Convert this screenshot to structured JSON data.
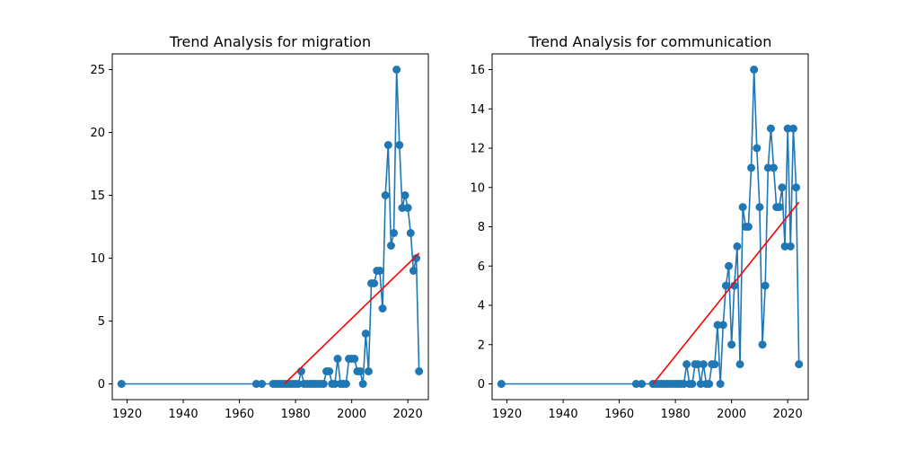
{
  "chart_data": [
    {
      "type": "line",
      "title": "Trend Analysis for migration",
      "xlabel": "",
      "ylabel": "",
      "xlim": [
        1914.7,
        2027.3
      ],
      "ylim": [
        -1.25,
        26.25
      ],
      "xticks": [
        1920,
        1940,
        1960,
        1980,
        2000,
        2020
      ],
      "yticks": [
        0,
        5,
        10,
        15,
        20,
        25
      ],
      "grid": false,
      "legend": "none",
      "series": [
        {
          "color": "#1f77b4",
          "marker": "circle",
          "points": [
            [
              1918,
              0
            ],
            [
              1966,
              0
            ],
            [
              1968,
              0
            ],
            [
              1972,
              0
            ],
            [
              1973,
              0
            ],
            [
              1974,
              0
            ],
            [
              1975,
              0
            ],
            [
              1976,
              0
            ],
            [
              1977,
              0
            ],
            [
              1978,
              0
            ],
            [
              1979,
              0
            ],
            [
              1980,
              0
            ],
            [
              1981,
              0
            ],
            [
              1982,
              1
            ],
            [
              1983,
              0
            ],
            [
              1984,
              0
            ],
            [
              1985,
              0
            ],
            [
              1986,
              0
            ],
            [
              1987,
              0
            ],
            [
              1988,
              0
            ],
            [
              1989,
              0
            ],
            [
              1990,
              0
            ],
            [
              1991,
              1
            ],
            [
              1992,
              1
            ],
            [
              1993,
              0
            ],
            [
              1994,
              0
            ],
            [
              1995,
              2
            ],
            [
              1996,
              0
            ],
            [
              1997,
              0
            ],
            [
              1998,
              0
            ],
            [
              1999,
              2
            ],
            [
              2000,
              2
            ],
            [
              2001,
              2
            ],
            [
              2002,
              1
            ],
            [
              2003,
              1
            ],
            [
              2004,
              0
            ],
            [
              2005,
              4
            ],
            [
              2006,
              1
            ],
            [
              2007,
              8
            ],
            [
              2008,
              8
            ],
            [
              2009,
              9
            ],
            [
              2010,
              9
            ],
            [
              2011,
              6
            ],
            [
              2012,
              15
            ],
            [
              2013,
              19
            ],
            [
              2014,
              11
            ],
            [
              2015,
              12
            ],
            [
              2016,
              25
            ],
            [
              2017,
              19
            ],
            [
              2018,
              14
            ],
            [
              2019,
              15
            ],
            [
              2020,
              14
            ],
            [
              2021,
              12
            ],
            [
              2022,
              9
            ],
            [
              2023,
              10
            ],
            [
              2024,
              1
            ]
          ]
        },
        {
          "color": "#ff0000",
          "marker": "none",
          "points": [
            [
              1976,
              0
            ],
            [
              2024,
              10.4
            ]
          ]
        }
      ]
    },
    {
      "type": "line",
      "title": "Trend Analysis for communication",
      "xlabel": "",
      "ylabel": "",
      "xlim": [
        1914.7,
        2027.3
      ],
      "ylim": [
        -0.8,
        16.8
      ],
      "xticks": [
        1920,
        1940,
        1960,
        1980,
        2000,
        2020
      ],
      "yticks": [
        0,
        2,
        4,
        6,
        8,
        10,
        12,
        14,
        16
      ],
      "grid": false,
      "legend": "none",
      "series": [
        {
          "color": "#1f77b4",
          "marker": "circle",
          "points": [
            [
              1918,
              0
            ],
            [
              1966,
              0
            ],
            [
              1968,
              0
            ],
            [
              1972,
              0
            ],
            [
              1973,
              0
            ],
            [
              1974,
              0
            ],
            [
              1975,
              0
            ],
            [
              1976,
              0
            ],
            [
              1977,
              0
            ],
            [
              1978,
              0
            ],
            [
              1979,
              0
            ],
            [
              1980,
              0
            ],
            [
              1981,
              0
            ],
            [
              1982,
              0
            ],
            [
              1983,
              0
            ],
            [
              1984,
              1
            ],
            [
              1985,
              0
            ],
            [
              1986,
              0
            ],
            [
              1987,
              1
            ],
            [
              1988,
              1
            ],
            [
              1989,
              0
            ],
            [
              1990,
              1
            ],
            [
              1991,
              0
            ],
            [
              1992,
              0
            ],
            [
              1993,
              1
            ],
            [
              1994,
              1
            ],
            [
              1995,
              3
            ],
            [
              1996,
              0
            ],
            [
              1997,
              3
            ],
            [
              1998,
              5
            ],
            [
              1999,
              6
            ],
            [
              2000,
              2
            ],
            [
              2001,
              5
            ],
            [
              2002,
              7
            ],
            [
              2003,
              1
            ],
            [
              2004,
              9
            ],
            [
              2005,
              8
            ],
            [
              2006,
              8
            ],
            [
              2007,
              11
            ],
            [
              2008,
              16
            ],
            [
              2009,
              12
            ],
            [
              2010,
              9
            ],
            [
              2011,
              2
            ],
            [
              2012,
              5
            ],
            [
              2013,
              11
            ],
            [
              2014,
              13
            ],
            [
              2015,
              11
            ],
            [
              2016,
              9
            ],
            [
              2017,
              9
            ],
            [
              2018,
              10
            ],
            [
              2019,
              7
            ],
            [
              2020,
              13
            ],
            [
              2021,
              7
            ],
            [
              2022,
              13
            ],
            [
              2023,
              10
            ],
            [
              2024,
              1
            ]
          ]
        },
        {
          "color": "#ff0000",
          "marker": "none",
          "points": [
            [
              1972,
              0
            ],
            [
              2024,
              9.25
            ]
          ]
        }
      ]
    }
  ]
}
